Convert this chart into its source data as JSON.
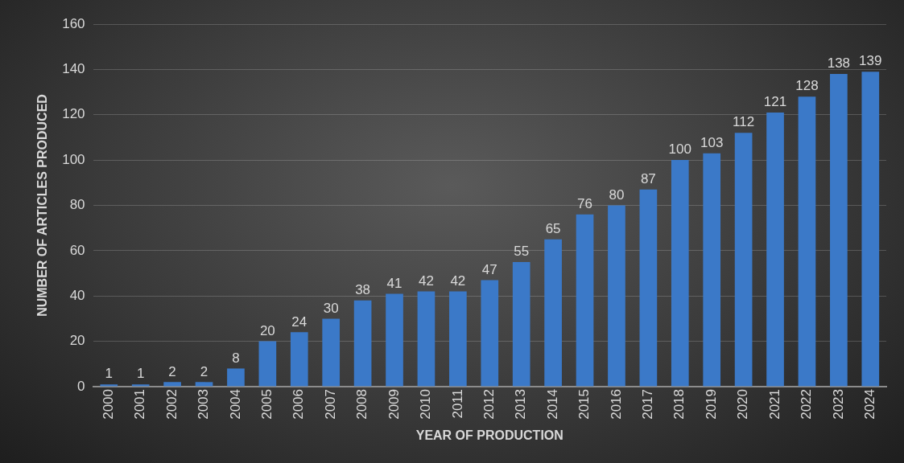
{
  "chart_data": {
    "type": "bar",
    "xlabel": "YEAR OF PRODUCTION",
    "ylabel": "NUMBER OF ARTICLES PRODUCED",
    "categories": [
      "2000",
      "2001",
      "2002",
      "2003",
      "2004",
      "2005",
      "2006",
      "2007",
      "2008",
      "2009",
      "2010",
      "2011",
      "2012",
      "2013",
      "2014",
      "2015",
      "2016",
      "2017",
      "2018",
      "2019",
      "2020",
      "2021",
      "2022",
      "2023",
      "2024"
    ],
    "values": [
      1,
      1,
      2,
      2,
      8,
      20,
      24,
      30,
      38,
      41,
      42,
      42,
      47,
      55,
      65,
      76,
      80,
      87,
      100,
      103,
      112,
      121,
      128,
      138,
      139
    ],
    "color": "#3b79c8",
    "ylim": [
      0,
      160
    ],
    "yticks": [
      0,
      20,
      40,
      60,
      80,
      100,
      120,
      140,
      160
    ],
    "grid": "y",
    "legend": false,
    "data_labels": true
  }
}
